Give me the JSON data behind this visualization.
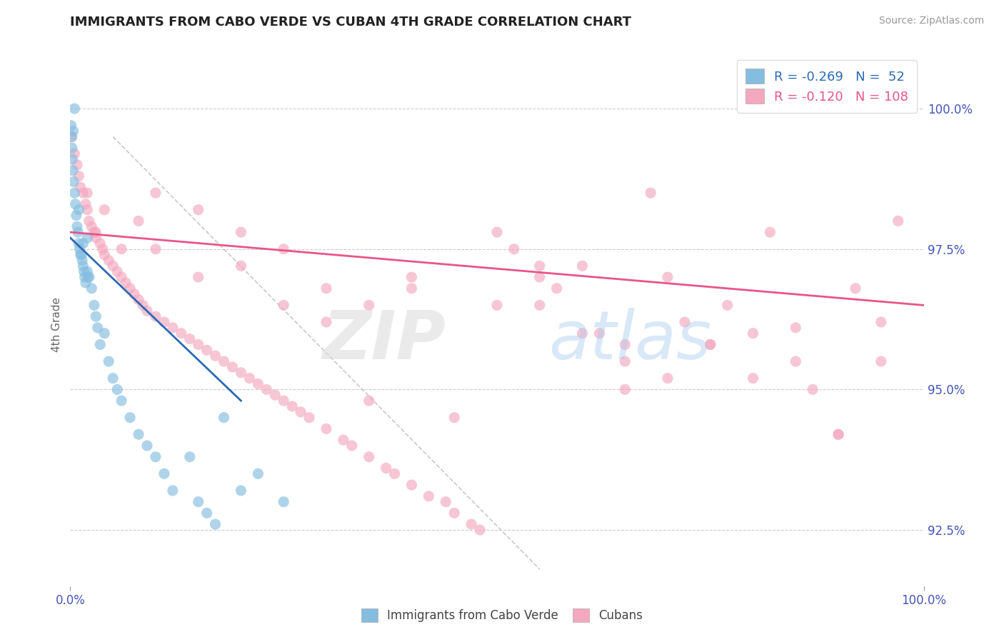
{
  "title": "IMMIGRANTS FROM CABO VERDE VS CUBAN 4TH GRADE CORRELATION CHART",
  "source_text": "Source: ZipAtlas.com",
  "ylabel": "4th Grade",
  "xlim": [
    0.0,
    100.0
  ],
  "ylim": [
    91.5,
    100.8
  ],
  "yticks": [
    92.5,
    95.0,
    97.5,
    100.0
  ],
  "xtick_labels": [
    "0.0%",
    "100.0%"
  ],
  "ytick_labels": [
    "92.5%",
    "95.0%",
    "97.5%",
    "100.0%"
  ],
  "blue_R": -0.269,
  "blue_N": 52,
  "pink_R": -0.12,
  "pink_N": 108,
  "blue_color": "#85bde0",
  "pink_color": "#f4a8bf",
  "trend_blue_color": "#2b6ab5",
  "trend_pink_color": "#e8558a",
  "legend_label_blue": "Immigrants from Cabo Verde",
  "legend_label_pink": "Cubans",
  "blue_trend_x0": 0.0,
  "blue_trend_y0": 97.7,
  "blue_trend_x1": 20.0,
  "blue_trend_y1": 94.8,
  "pink_trend_x0": 0.0,
  "pink_trend_y0": 97.8,
  "pink_trend_x1": 100.0,
  "pink_trend_y1": 96.5,
  "gray_line_x0": 5.0,
  "gray_line_y0": 99.5,
  "gray_line_x1": 55.0,
  "gray_line_y1": 91.8,
  "blue_x": [
    0.1,
    0.15,
    0.2,
    0.25,
    0.3,
    0.35,
    0.4,
    0.5,
    0.5,
    0.6,
    0.7,
    0.8,
    0.9,
    1.0,
    1.0,
    1.1,
    1.2,
    1.3,
    1.4,
    1.5,
    1.5,
    1.6,
    1.7,
    1.8,
    2.0,
    2.0,
    2.1,
    2.2,
    2.5,
    2.8,
    3.0,
    3.2,
    3.5,
    4.0,
    4.5,
    5.0,
    5.5,
    6.0,
    7.0,
    8.0,
    9.0,
    10.0,
    11.0,
    12.0,
    14.0,
    15.0,
    16.0,
    17.0,
    18.0,
    20.0,
    22.0,
    25.0
  ],
  "blue_y": [
    99.7,
    99.5,
    99.3,
    99.1,
    98.9,
    99.6,
    98.7,
    98.5,
    100.0,
    98.3,
    98.1,
    97.9,
    97.8,
    97.6,
    98.2,
    97.5,
    97.4,
    97.4,
    97.3,
    97.2,
    97.6,
    97.1,
    97.0,
    96.9,
    97.7,
    97.1,
    97.0,
    97.0,
    96.8,
    96.5,
    96.3,
    96.1,
    95.8,
    96.0,
    95.5,
    95.2,
    95.0,
    94.8,
    94.5,
    94.2,
    94.0,
    93.8,
    93.5,
    93.2,
    93.8,
    93.0,
    92.8,
    92.6,
    94.5,
    93.2,
    93.5,
    93.0
  ],
  "pink_x": [
    0.2,
    0.5,
    0.8,
    1.0,
    1.2,
    1.5,
    1.8,
    2.0,
    2.2,
    2.5,
    2.8,
    3.0,
    3.5,
    3.8,
    4.0,
    4.5,
    5.0,
    5.5,
    6.0,
    6.5,
    7.0,
    7.5,
    8.0,
    8.5,
    9.0,
    10.0,
    11.0,
    12.0,
    13.0,
    14.0,
    15.0,
    16.0,
    17.0,
    18.0,
    19.0,
    20.0,
    21.0,
    22.0,
    23.0,
    24.0,
    25.0,
    26.0,
    27.0,
    28.0,
    30.0,
    32.0,
    33.0,
    35.0,
    37.0,
    38.0,
    40.0,
    42.0,
    44.0,
    45.0,
    47.0,
    48.0,
    50.0,
    52.0,
    55.0,
    57.0,
    60.0,
    62.0,
    65.0,
    68.0,
    70.0,
    72.0,
    75.0,
    77.0,
    80.0,
    82.0,
    85.0,
    87.0,
    90.0,
    92.0,
    95.0,
    97.0,
    2.0,
    3.0,
    4.0,
    6.0,
    8.0,
    10.0,
    15.0,
    20.0,
    25.0,
    30.0,
    35.0,
    40.0,
    30.0,
    20.0,
    10.0,
    50.0,
    60.0,
    40.0,
    25.0,
    15.0,
    55.0,
    65.0,
    70.0,
    80.0,
    45.0,
    85.0,
    90.0,
    95.0,
    75.0,
    35.0,
    55.0,
    65.0
  ],
  "pink_y": [
    99.5,
    99.2,
    99.0,
    98.8,
    98.6,
    98.5,
    98.3,
    98.2,
    98.0,
    97.9,
    97.8,
    97.7,
    97.6,
    97.5,
    97.4,
    97.3,
    97.2,
    97.1,
    97.0,
    96.9,
    96.8,
    96.7,
    96.6,
    96.5,
    96.4,
    96.3,
    96.2,
    96.1,
    96.0,
    95.9,
    95.8,
    95.7,
    95.6,
    95.5,
    95.4,
    95.3,
    95.2,
    95.1,
    95.0,
    94.9,
    94.8,
    94.7,
    94.6,
    94.5,
    94.3,
    94.1,
    94.0,
    93.8,
    93.6,
    93.5,
    93.3,
    93.1,
    93.0,
    92.8,
    92.6,
    92.5,
    97.8,
    97.5,
    97.0,
    96.8,
    97.2,
    96.0,
    95.5,
    98.5,
    97.0,
    96.2,
    95.8,
    96.5,
    95.2,
    97.8,
    96.1,
    95.0,
    94.2,
    96.8,
    95.5,
    98.0,
    98.5,
    97.8,
    98.2,
    97.5,
    98.0,
    97.5,
    97.0,
    97.2,
    97.5,
    96.8,
    96.5,
    97.0,
    96.2,
    97.8,
    98.5,
    96.5,
    96.0,
    96.8,
    96.5,
    98.2,
    97.2,
    95.8,
    95.2,
    96.0,
    94.5,
    95.5,
    94.2,
    96.2,
    95.8,
    94.8,
    96.5,
    95.0
  ]
}
